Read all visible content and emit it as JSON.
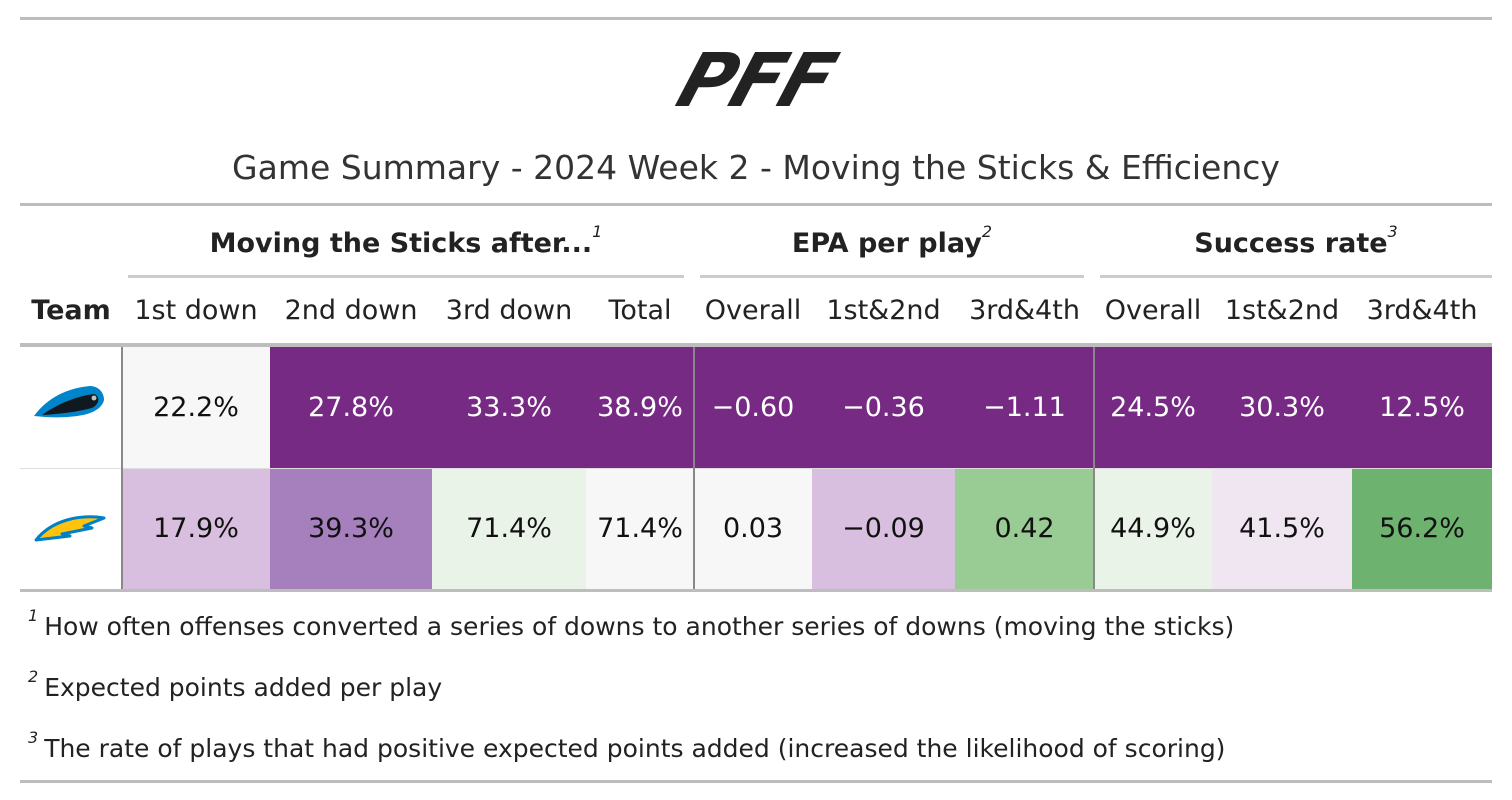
{
  "header": {
    "logo": "PFF",
    "title": "Game Summary - 2024 Week 2 - Moving the Sticks & Efficiency"
  },
  "table": {
    "spanners": [
      {
        "label": "Moving the Sticks after...",
        "note": "1"
      },
      {
        "label": "EPA per play",
        "note": "2"
      },
      {
        "label": "Success rate",
        "note": "3"
      }
    ],
    "columns": [
      "Team",
      "1st down",
      "2nd down",
      "3rd down",
      "Total",
      "Overall",
      "1st&2nd",
      "3rd&4th",
      "Overall",
      "1st&2nd",
      "3rd&4th"
    ],
    "rows": [
      {
        "cells": [
          "22.2%",
          "27.8%",
          "33.3%",
          "38.9%",
          "−0.60",
          "−0.36",
          "−1.11",
          "24.5%",
          "30.3%",
          "12.5%"
        ],
        "colors": [
          "#f7f7f7",
          "#762a83",
          "#762a83",
          "#762a83",
          "#762a83",
          "#762a83",
          "#762a83",
          "#762a83",
          "#762a83",
          "#762a83"
        ]
      },
      {
        "cells": [
          "17.9%",
          "39.3%",
          "71.4%",
          "71.4%",
          "0.03",
          "−0.09",
          "0.42",
          "44.9%",
          "41.5%",
          "56.2%"
        ],
        "colors": [
          "#d9bfdf",
          "#a67fbd",
          "#eaf3e8",
          "#f7f7f7",
          "#f7f7f7",
          "#d9bfdf",
          "#99cc94",
          "#eaf3e8",
          "#efe6f1",
          "#6db36f"
        ]
      }
    ]
  },
  "footnotes": [
    {
      "mark": "1",
      "text": "How often offenses converted a series of downs to another series of downs (moving the sticks)"
    },
    {
      "mark": "2",
      "text": "Expected points added per play"
    },
    {
      "mark": "3",
      "text": "The rate of plays that had positive expected points added (increased the likelihood of scoring)"
    }
  ]
}
